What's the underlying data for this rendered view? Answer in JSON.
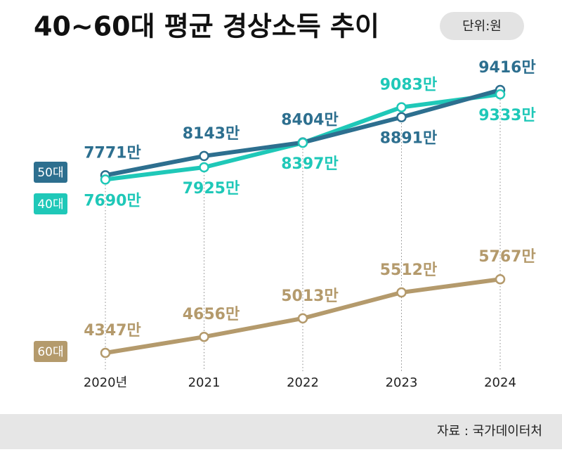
{
  "chart_data": {
    "type": "line",
    "title": "40~60대 평균 경상소득 추이",
    "unit_note": "단위:원",
    "source": "자료 : 국가데이터처",
    "categories": [
      "2020년",
      "2021",
      "2022",
      "2023",
      "2024"
    ],
    "series": [
      {
        "name": "50대",
        "color": "#2d6f8f",
        "values": [
          7771,
          8143,
          8404,
          8891,
          9416
        ],
        "value_labels": [
          "7771만",
          "8143만",
          "8404만",
          "8891만",
          "9416만"
        ]
      },
      {
        "name": "40대",
        "color": "#1fc8b8",
        "values": [
          7690,
          7925,
          8397,
          9083,
          9333
        ],
        "value_labels": [
          "7690만",
          "7925만",
          "8397만",
          "9083만",
          "9333만"
        ]
      },
      {
        "name": "60대",
        "color": "#b49a6c",
        "values": [
          4347,
          4656,
          5013,
          5512,
          5767
        ],
        "value_labels": [
          "4347만",
          "4656만",
          "5013만",
          "5512만",
          "5767만"
        ]
      }
    ]
  }
}
